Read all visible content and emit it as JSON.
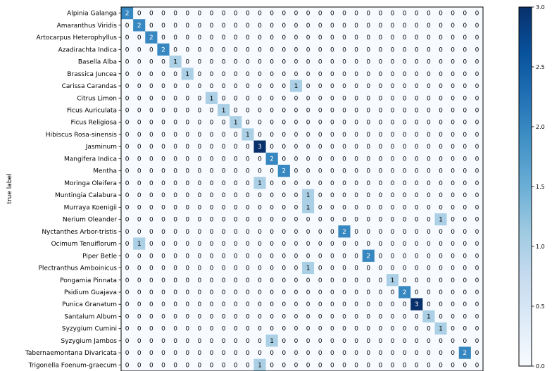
{
  "chart_data": {
    "type": "heatmap",
    "title": "",
    "ylabel": "true label",
    "xlabel": "",
    "row_labels": [
      "Alpinia Galanga",
      "Amaranthus Viridis",
      "Artocarpus Heterophyllus",
      "Azadirachta Indica",
      "Basella Alba",
      "Brassica Juncea",
      "Carissa Carandas",
      "Citrus Limon",
      "Ficus Auriculata",
      "Ficus Religiosa",
      "Hibiscus Rosa-sinensis",
      "Jasminum",
      "Mangifera Indica",
      "Mentha",
      "Moringa Oleifera",
      "Muntingia Calabura",
      "Murraya Koenigii",
      "Nerium Oleander",
      "Nyctanthes Arbor-tristis",
      "Ocimum Tenuiflorum",
      "Piper Betle",
      "Plectranthus Amboinicus",
      "Pongamia Pinnata",
      "Psidium Guajava",
      "Punica Granatum",
      "Santalum Album",
      "Syzygium Cumini",
      "Syzygium Jambos",
      "Tabernaemontana Divaricata",
      "Trigonella Foenum-graecum"
    ],
    "ncols": 30,
    "nonzero": [
      {
        "row": 0,
        "col": 0,
        "value": 2
      },
      {
        "row": 1,
        "col": 1,
        "value": 2
      },
      {
        "row": 2,
        "col": 2,
        "value": 2
      },
      {
        "row": 3,
        "col": 3,
        "value": 2
      },
      {
        "row": 4,
        "col": 4,
        "value": 1
      },
      {
        "row": 5,
        "col": 5,
        "value": 1
      },
      {
        "row": 6,
        "col": 14,
        "value": 1
      },
      {
        "row": 7,
        "col": 7,
        "value": 1
      },
      {
        "row": 8,
        "col": 8,
        "value": 1
      },
      {
        "row": 9,
        "col": 9,
        "value": 1
      },
      {
        "row": 10,
        "col": 10,
        "value": 1
      },
      {
        "row": 11,
        "col": 11,
        "value": 3
      },
      {
        "row": 12,
        "col": 12,
        "value": 2
      },
      {
        "row": 13,
        "col": 13,
        "value": 2
      },
      {
        "row": 14,
        "col": 11,
        "value": 1
      },
      {
        "row": 15,
        "col": 15,
        "value": 1
      },
      {
        "row": 16,
        "col": 15,
        "value": 1
      },
      {
        "row": 17,
        "col": 26,
        "value": 1
      },
      {
        "row": 18,
        "col": 18,
        "value": 2
      },
      {
        "row": 19,
        "col": 1,
        "value": 1
      },
      {
        "row": 20,
        "col": 20,
        "value": 2
      },
      {
        "row": 21,
        "col": 15,
        "value": 1
      },
      {
        "row": 22,
        "col": 22,
        "value": 1
      },
      {
        "row": 23,
        "col": 23,
        "value": 2
      },
      {
        "row": 24,
        "col": 24,
        "value": 3
      },
      {
        "row": 25,
        "col": 25,
        "value": 1
      },
      {
        "row": 26,
        "col": 26,
        "value": 1
      },
      {
        "row": 27,
        "col": 12,
        "value": 1
      },
      {
        "row": 28,
        "col": 28,
        "value": 2
      },
      {
        "row": 29,
        "col": 11,
        "value": 1
      }
    ],
    "vmin": 0,
    "vmax": 3,
    "colormap": "Blues",
    "colorbar_ticks": [
      "0.0",
      "0.5",
      "1.0",
      "1.5",
      "2.0",
      "2.5",
      "3.0"
    ],
    "colors": {
      "low": "#f7fbff",
      "high": "#08306b",
      "text_dark": "#000000",
      "text_light": "#ffffff"
    }
  }
}
